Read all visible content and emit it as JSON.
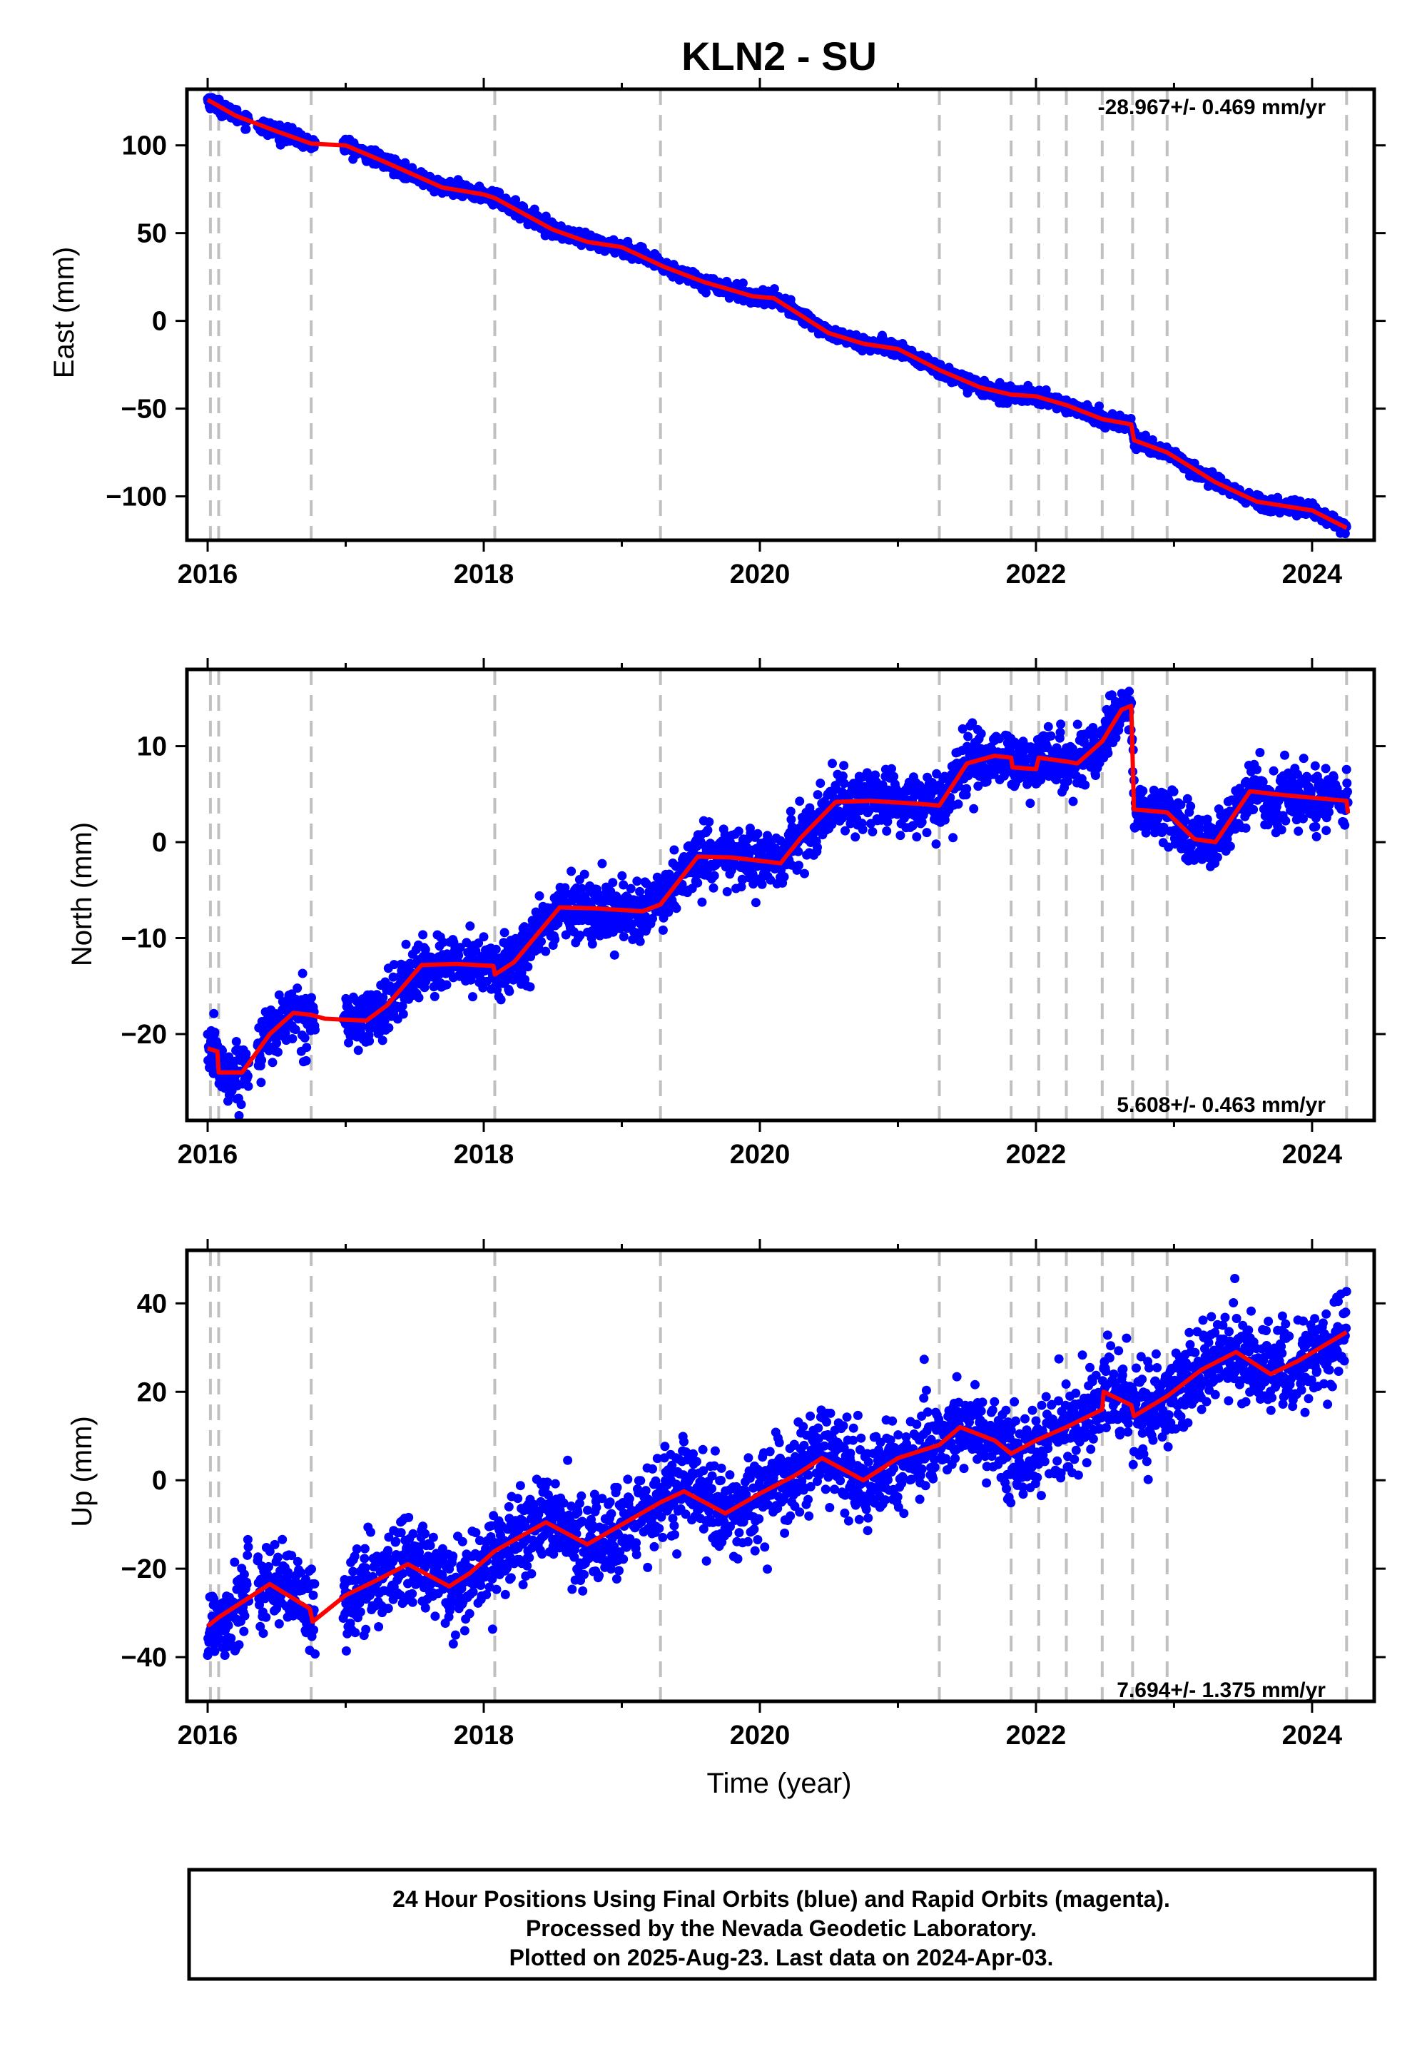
{
  "title": "KLN2 - SU",
  "footer": {
    "line1": "24 Hour Positions Using Final Orbits (blue) and Rapid Orbits (magenta).",
    "line2": "Processed by the Nevada Geodetic Laboratory.",
    "line3": "Plotted on 2025-Aug-23. Last data on 2024-Apr-03."
  },
  "colors": {
    "data": "#0000ff",
    "model": "#ff0000",
    "event_lines": "#c0c0c0",
    "frame": "#000000"
  },
  "chart_data": [
    {
      "type": "scatter",
      "ylabel": "East (mm)",
      "xlabel": "",
      "xlim": [
        2015.85,
        2024.45
      ],
      "ylim": [
        -125,
        132
      ],
      "xticks": [
        "2016",
        "2018",
        "2020",
        "2022",
        "2024"
      ],
      "yticks": [
        "100",
        "50",
        "0",
        "−50",
        "−100"
      ],
      "ytick_values": [
        100,
        50,
        0,
        -50,
        -100
      ],
      "rate_label": "-28.967+/- 0.469 mm/yr",
      "rate_position": "top-right",
      "event_lines": [
        2016.02,
        2016.08,
        2016.75,
        2018.08,
        2019.28,
        2021.3,
        2021.82,
        2022.02,
        2022.22,
        2022.48,
        2022.7,
        2022.95,
        2024.25
      ],
      "model": [
        [
          2016.0,
          126
        ],
        [
          2016.2,
          117
        ],
        [
          2016.5,
          108
        ],
        [
          2016.75,
          101
        ],
        [
          2017.0,
          100
        ],
        [
          2017.3,
          90
        ],
        [
          2017.7,
          76
        ],
        [
          2018.0,
          72
        ],
        [
          2018.08,
          70
        ],
        [
          2018.5,
          52
        ],
        [
          2018.75,
          45
        ],
        [
          2019.0,
          42
        ],
        [
          2019.3,
          31
        ],
        [
          2019.6,
          22
        ],
        [
          2019.95,
          14
        ],
        [
          2020.1,
          13
        ],
        [
          2020.5,
          -7
        ],
        [
          2020.75,
          -13
        ],
        [
          2021.0,
          -16
        ],
        [
          2021.3,
          -28
        ],
        [
          2021.6,
          -38
        ],
        [
          2021.82,
          -42
        ],
        [
          2022.0,
          -43
        ],
        [
          2022.22,
          -48
        ],
        [
          2022.48,
          -56
        ],
        [
          2022.69,
          -59
        ],
        [
          2022.71,
          -68
        ],
        [
          2022.95,
          -75
        ],
        [
          2023.3,
          -92
        ],
        [
          2023.6,
          -103
        ],
        [
          2024.0,
          -108
        ],
        [
          2024.25,
          -118
        ]
      ],
      "scatter_noise": 2.0
    },
    {
      "type": "scatter",
      "ylabel": "North (mm)",
      "xlabel": "",
      "xlim": [
        2015.85,
        2024.45
      ],
      "ylim": [
        -29,
        18
      ],
      "xticks": [
        "2016",
        "2018",
        "2020",
        "2022",
        "2024"
      ],
      "yticks": [
        "10",
        "0",
        "−10",
        "−20"
      ],
      "ytick_values": [
        10,
        0,
        -10,
        -20
      ],
      "rate_label": "5.608+/- 0.463 mm/yr",
      "rate_position": "bottom-right",
      "event_lines": [
        2016.02,
        2016.08,
        2016.75,
        2018.08,
        2019.28,
        2021.3,
        2021.82,
        2022.02,
        2022.22,
        2022.48,
        2022.7,
        2022.95,
        2024.25
      ],
      "model": [
        [
          2016.0,
          -21.5
        ],
        [
          2016.07,
          -21.8
        ],
        [
          2016.08,
          -24
        ],
        [
          2016.25,
          -24
        ],
        [
          2016.45,
          -20
        ],
        [
          2016.62,
          -17.8
        ],
        [
          2016.75,
          -18
        ],
        [
          2016.85,
          -18.4
        ],
        [
          2017.15,
          -18.6
        ],
        [
          2017.3,
          -17
        ],
        [
          2017.55,
          -12.8
        ],
        [
          2017.8,
          -12.7
        ],
        [
          2018.07,
          -12.9
        ],
        [
          2018.08,
          -13.8
        ],
        [
          2018.22,
          -12.5
        ],
        [
          2018.55,
          -6.8
        ],
        [
          2018.8,
          -6.9
        ],
        [
          2019.15,
          -7.2
        ],
        [
          2019.28,
          -6.5
        ],
        [
          2019.55,
          -1.5
        ],
        [
          2019.8,
          -1.6
        ],
        [
          2020.15,
          -2.2
        ],
        [
          2020.3,
          0.5
        ],
        [
          2020.55,
          4.2
        ],
        [
          2020.8,
          4.3
        ],
        [
          2021.15,
          4.0
        ],
        [
          2021.3,
          3.8
        ],
        [
          2021.5,
          8.2
        ],
        [
          2021.7,
          9.0
        ],
        [
          2021.82,
          8.8
        ],
        [
          2021.83,
          7.8
        ],
        [
          2022.0,
          7.6
        ],
        [
          2022.02,
          8.8
        ],
        [
          2022.22,
          8.4
        ],
        [
          2022.3,
          8.2
        ],
        [
          2022.48,
          10.5
        ],
        [
          2022.62,
          13.8
        ],
        [
          2022.69,
          14.2
        ],
        [
          2022.71,
          3.4
        ],
        [
          2022.95,
          3.1
        ],
        [
          2023.15,
          0.3
        ],
        [
          2023.3,
          0.0
        ],
        [
          2023.55,
          5.3
        ],
        [
          2023.8,
          4.9
        ],
        [
          2024.25,
          4.3
        ],
        [
          2024.26,
          3.0
        ]
      ],
      "scatter_noise": 1.5
    },
    {
      "type": "scatter",
      "ylabel": "Up (mm)",
      "xlabel": "Time (year)",
      "xlim": [
        2015.85,
        2024.45
      ],
      "ylim": [
        -50,
        52
      ],
      "xticks": [
        "2016",
        "2018",
        "2020",
        "2022",
        "2024"
      ],
      "yticks": [
        "40",
        "20",
        "0",
        "−20",
        "−40"
      ],
      "ytick_values": [
        40,
        20,
        0,
        -20,
        -40
      ],
      "rate_label": "7.694+/- 1.375 mm/yr",
      "rate_position": "bottom-right",
      "event_lines": [
        2016.02,
        2016.08,
        2016.75,
        2018.08,
        2019.28,
        2021.3,
        2021.82,
        2022.02,
        2022.22,
        2022.48,
        2022.7,
        2022.95,
        2024.25
      ],
      "model": [
        [
          2016.0,
          -33
        ],
        [
          2016.08,
          -31
        ],
        [
          2016.45,
          -23.5
        ],
        [
          2016.74,
          -29
        ],
        [
          2016.76,
          -32
        ],
        [
          2017.0,
          -26
        ],
        [
          2017.2,
          -23
        ],
        [
          2017.45,
          -19
        ],
        [
          2017.75,
          -24
        ],
        [
          2017.9,
          -21
        ],
        [
          2018.08,
          -16
        ],
        [
          2018.25,
          -13
        ],
        [
          2018.45,
          -9.5
        ],
        [
          2018.75,
          -14.5
        ],
        [
          2019.0,
          -10
        ],
        [
          2019.28,
          -5
        ],
        [
          2019.45,
          -2.5
        ],
        [
          2019.75,
          -7.5
        ],
        [
          2020.0,
          -3
        ],
        [
          2020.25,
          1
        ],
        [
          2020.45,
          5
        ],
        [
          2020.75,
          0
        ],
        [
          2021.0,
          5
        ],
        [
          2021.3,
          8
        ],
        [
          2021.45,
          12
        ],
        [
          2021.7,
          9
        ],
        [
          2021.82,
          6
        ],
        [
          2022.0,
          9
        ],
        [
          2022.22,
          12
        ],
        [
          2022.48,
          16
        ],
        [
          2022.49,
          20
        ],
        [
          2022.69,
          17
        ],
        [
          2022.71,
          14.5
        ],
        [
          2022.95,
          19
        ],
        [
          2023.2,
          25
        ],
        [
          2023.45,
          29
        ],
        [
          2023.7,
          24
        ],
        [
          2023.9,
          27
        ],
        [
          2024.25,
          33.5
        ]
      ],
      "scatter_noise": 5.0
    }
  ]
}
